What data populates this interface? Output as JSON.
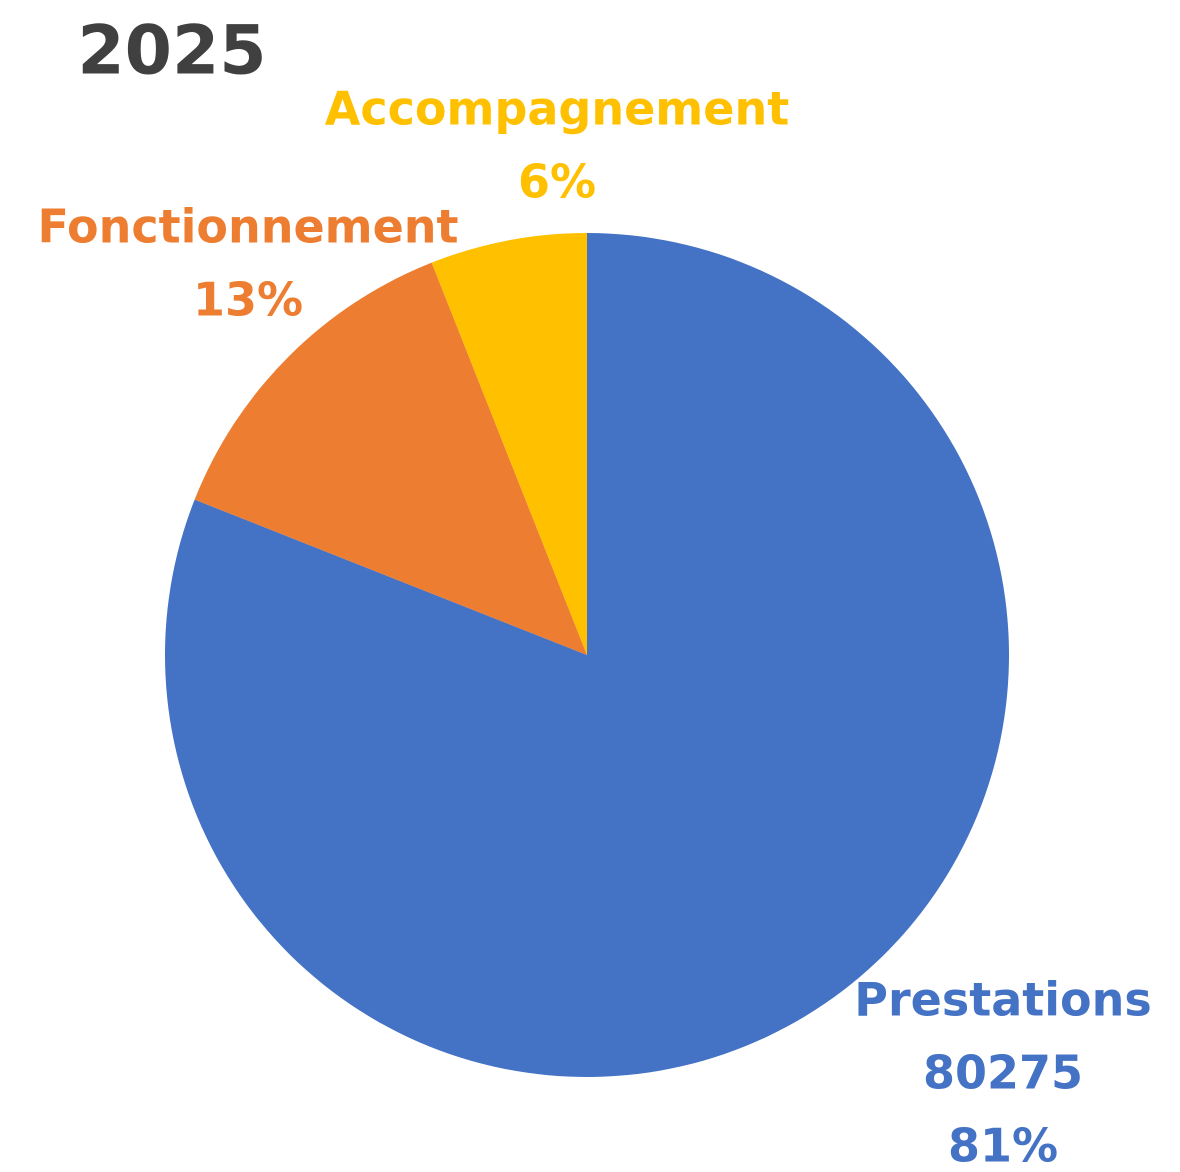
{
  "chart_data": {
    "type": "pie",
    "title": "2025",
    "categories": [
      "Prestations",
      "Fonctionnement",
      "Accompagnement"
    ],
    "values": [
      81,
      13,
      6
    ],
    "value_labels": [
      "81%",
      "13%",
      "6%"
    ],
    "amounts": [
      80275,
      null,
      null
    ],
    "colors": [
      "#4472c4",
      "#ed7d31",
      "#ffc000"
    ]
  }
}
